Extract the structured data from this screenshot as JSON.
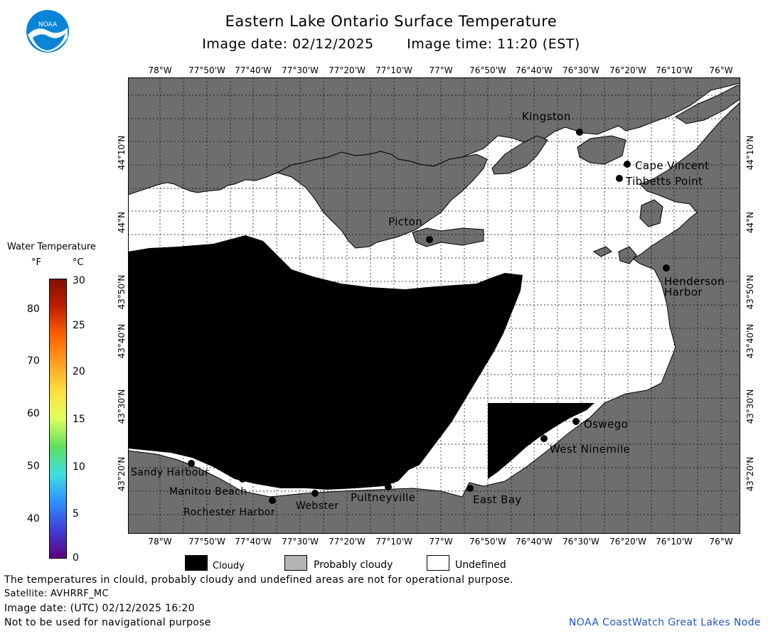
{
  "header": {
    "title": "Eastern Lake Ontario Surface Temperature",
    "image_date": "Image date: 02/12/2025",
    "image_time": "Image time: 11:20 (EST)"
  },
  "logo": {
    "text": "NOAA",
    "icon": "noaa-logo-icon"
  },
  "map": {
    "lon_labels": [
      "78°W",
      "77°50'W",
      "77°40'W",
      "77°30'W",
      "77°20'W",
      "77°10'W",
      "77°W",
      "76°50'W",
      "76°40'W",
      "76°30'W",
      "76°20'W",
      "76°10'W",
      "76°W"
    ],
    "lat_labels": [
      "44°10'N",
      "44°N",
      "43°50'N",
      "43°40'N",
      "43°30'N",
      "43°20'N"
    ],
    "places": {
      "kingston": "Kingston",
      "cape_vincent": "Cape Vincent",
      "tibbetts_point": "Tibbetts Point",
      "picton": "Picton",
      "henderson_harbor_1": "Henderson",
      "henderson_harbor_2": "Harbor",
      "oswego": "Oswego",
      "west_ninemile": "West Ninemile",
      "east_bay": "East Bay",
      "pultneyville": "Pultneyville",
      "webster": "Webster",
      "rochester_harbor": "Rochester Harbor",
      "manitou_beach": "Manitou Beach",
      "sandy_harbour": "Sandy Harbour"
    },
    "colors": {
      "land": "#6e6e6e",
      "water_undefined": "#ffffff",
      "cloudy": "#000000",
      "grid": "#000000"
    }
  },
  "legend": {
    "title": "Water Temperature",
    "unit_f": "°F",
    "unit_c": "°C",
    "f_ticks": [
      "80",
      "70",
      "60",
      "50",
      "40"
    ],
    "c_ticks": [
      "30",
      "25",
      "20",
      "15",
      "10",
      "5",
      "0"
    ],
    "colors": [
      "#5e007e",
      "#3f3fd6",
      "#2f8fff",
      "#3fdfdf",
      "#5fdf5f",
      "#dfff5f",
      "#ffdf3f",
      "#ff9f1f",
      "#ff6000",
      "#bf2000",
      "#801000"
    ]
  },
  "key": {
    "cloudy": "Cloudy",
    "probably_cloudy": "Probably cloudy",
    "undefined": "Undefined",
    "colors": {
      "cloudy": "#000000",
      "probably_cloudy": "#b4b4b4",
      "undefined": "#ffffff"
    }
  },
  "footer": {
    "line1": "The temperatures in clould, probably cloudy and undefined areas are not for operational purpose.",
    "line2": "Satellite: AVHRRF_MC",
    "line3": "Image date: (UTC) 02/12/2025  16:20",
    "line4": "Not to be used for navigational purpose",
    "credit": "NOAA CoastWatch Great Lakes Node"
  }
}
